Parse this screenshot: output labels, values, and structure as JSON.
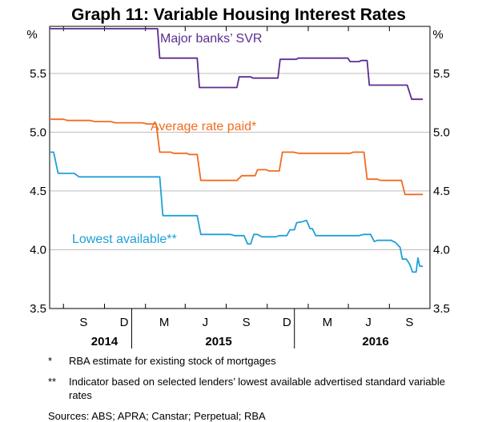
{
  "chart_data": {
    "type": "line",
    "title": "Graph 11: Variable Housing Interest Rates",
    "y_unit_left": "%",
    "y_unit_right": "%",
    "ylim": [
      3.5,
      5.9
    ],
    "y_ticks": [
      3.5,
      4.0,
      4.5,
      5.0,
      5.5
    ],
    "y_tick_labels": [
      "3.5",
      "4.0",
      "4.5",
      "5.0",
      "5.5"
    ],
    "x_start": "2014-07-01",
    "x_end": "2016-10-31",
    "month_ticks": [
      {
        "label": "S",
        "date": "2014-09-15"
      },
      {
        "label": "D",
        "date": "2014-12-15"
      },
      {
        "label": "M",
        "date": "2015-03-15"
      },
      {
        "label": "J",
        "date": "2015-06-15"
      },
      {
        "label": "S",
        "date": "2015-09-15"
      },
      {
        "label": "D",
        "date": "2015-12-15"
      },
      {
        "label": "M",
        "date": "2016-03-15"
      },
      {
        "label": "J",
        "date": "2016-06-15"
      },
      {
        "label": "S",
        "date": "2016-09-15"
      }
    ],
    "year_labels": [
      {
        "label": "2014",
        "date": "2014-11-01"
      },
      {
        "label": "2015",
        "date": "2015-07-15"
      },
      {
        "label": "2016",
        "date": "2016-07-01"
      }
    ],
    "grid": true,
    "series": [
      {
        "name": "Major banks’ SVR",
        "color": "#5b2d90",
        "points": [
          [
            "2014-07-01",
            5.88
          ],
          [
            "2015-02-28",
            5.88
          ],
          [
            "2015-03-05",
            5.63
          ],
          [
            "2015-05-28",
            5.63
          ],
          [
            "2015-06-02",
            5.38
          ],
          [
            "2015-08-25",
            5.38
          ],
          [
            "2015-08-30",
            5.47
          ],
          [
            "2015-09-25",
            5.47
          ],
          [
            "2015-09-30",
            5.46
          ],
          [
            "2015-11-25",
            5.46
          ],
          [
            "2015-11-30",
            5.62
          ],
          [
            "2016-01-05",
            5.62
          ],
          [
            "2016-01-10",
            5.63
          ],
          [
            "2016-04-30",
            5.63
          ],
          [
            "2016-05-05",
            5.6
          ],
          [
            "2016-05-25",
            5.6
          ],
          [
            "2016-05-30",
            5.61
          ],
          [
            "2016-06-12",
            5.61
          ],
          [
            "2016-06-17",
            5.4
          ],
          [
            "2016-09-10",
            5.4
          ],
          [
            "2016-09-20",
            5.28
          ],
          [
            "2016-10-15",
            5.28
          ]
        ]
      },
      {
        "name": "Average rate paid*",
        "color": "#f26b21",
        "points": [
          [
            "2014-07-01",
            5.11
          ],
          [
            "2014-08-01",
            5.11
          ],
          [
            "2014-08-10",
            5.1
          ],
          [
            "2014-09-30",
            5.1
          ],
          [
            "2014-10-10",
            5.09
          ],
          [
            "2014-11-15",
            5.09
          ],
          [
            "2014-11-25",
            5.08
          ],
          [
            "2015-01-25",
            5.08
          ],
          [
            "2015-02-05",
            5.07
          ],
          [
            "2015-02-25",
            5.07
          ],
          [
            "2015-03-05",
            4.83
          ],
          [
            "2015-03-30",
            4.83
          ],
          [
            "2015-04-05",
            4.82
          ],
          [
            "2015-05-05",
            4.82
          ],
          [
            "2015-05-10",
            4.81
          ],
          [
            "2015-05-28",
            4.81
          ],
          [
            "2015-06-05",
            4.59
          ],
          [
            "2015-08-25",
            4.59
          ],
          [
            "2015-09-05",
            4.63
          ],
          [
            "2015-10-05",
            4.63
          ],
          [
            "2015-10-10",
            4.68
          ],
          [
            "2015-10-30",
            4.68
          ],
          [
            "2015-11-05",
            4.67
          ],
          [
            "2015-11-28",
            4.67
          ],
          [
            "2015-12-05",
            4.83
          ],
          [
            "2015-12-30",
            4.83
          ],
          [
            "2016-01-10",
            4.82
          ],
          [
            "2016-05-05",
            4.82
          ],
          [
            "2016-05-12",
            4.83
          ],
          [
            "2016-06-05",
            4.83
          ],
          [
            "2016-06-12",
            4.6
          ],
          [
            "2016-07-05",
            4.6
          ],
          [
            "2016-07-12",
            4.59
          ],
          [
            "2016-08-28",
            4.59
          ],
          [
            "2016-09-05",
            4.47
          ],
          [
            "2016-10-15",
            4.47
          ]
        ]
      },
      {
        "name": "Lowest available**",
        "color": "#1fa0d8",
        "points": [
          [
            "2014-07-01",
            4.83
          ],
          [
            "2014-07-10",
            4.83
          ],
          [
            "2014-07-20",
            4.65
          ],
          [
            "2014-08-25",
            4.65
          ],
          [
            "2014-09-05",
            4.62
          ],
          [
            "2015-03-05",
            4.62
          ],
          [
            "2015-03-12",
            4.29
          ],
          [
            "2015-05-28",
            4.29
          ],
          [
            "2015-06-05",
            4.13
          ],
          [
            "2015-08-10",
            4.13
          ],
          [
            "2015-08-20",
            4.12
          ],
          [
            "2015-09-10",
            4.12
          ],
          [
            "2015-09-18",
            4.05
          ],
          [
            "2015-09-25",
            4.05
          ],
          [
            "2015-10-02",
            4.13
          ],
          [
            "2015-10-10",
            4.13
          ],
          [
            "2015-10-20",
            4.11
          ],
          [
            "2015-11-20",
            4.11
          ],
          [
            "2015-11-28",
            4.12
          ],
          [
            "2015-12-15",
            4.12
          ],
          [
            "2015-12-22",
            4.17
          ],
          [
            "2016-01-01",
            4.17
          ],
          [
            "2016-01-06",
            4.23
          ],
          [
            "2016-01-20",
            4.24
          ],
          [
            "2016-01-28",
            4.25
          ],
          [
            "2016-02-05",
            4.18
          ],
          [
            "2016-02-10",
            4.18
          ],
          [
            "2016-02-18",
            4.12
          ],
          [
            "2016-05-25",
            4.12
          ],
          [
            "2016-06-05",
            4.13
          ],
          [
            "2016-06-20",
            4.13
          ],
          [
            "2016-06-28",
            4.07
          ],
          [
            "2016-07-05",
            4.08
          ],
          [
            "2016-08-05",
            4.08
          ],
          [
            "2016-08-15",
            4.06
          ],
          [
            "2016-08-25",
            4.02
          ],
          [
            "2016-08-30",
            3.92
          ],
          [
            "2016-09-08",
            3.92
          ],
          [
            "2016-09-15",
            3.88
          ],
          [
            "2016-09-22",
            3.81
          ],
          [
            "2016-09-30",
            3.81
          ],
          [
            "2016-10-04",
            3.93
          ],
          [
            "2016-10-08",
            3.86
          ],
          [
            "2016-10-15",
            3.86
          ]
        ]
      }
    ]
  },
  "notes": [
    {
      "marker": "*",
      "text": "RBA estimate for existing stock of mortgages"
    },
    {
      "marker": "**",
      "text": "Indicator based on selected lenders’ lowest available advertised standard variable rates"
    }
  ],
  "sources": "Sources: ABS; APRA; Canstar; Perpetual; RBA"
}
